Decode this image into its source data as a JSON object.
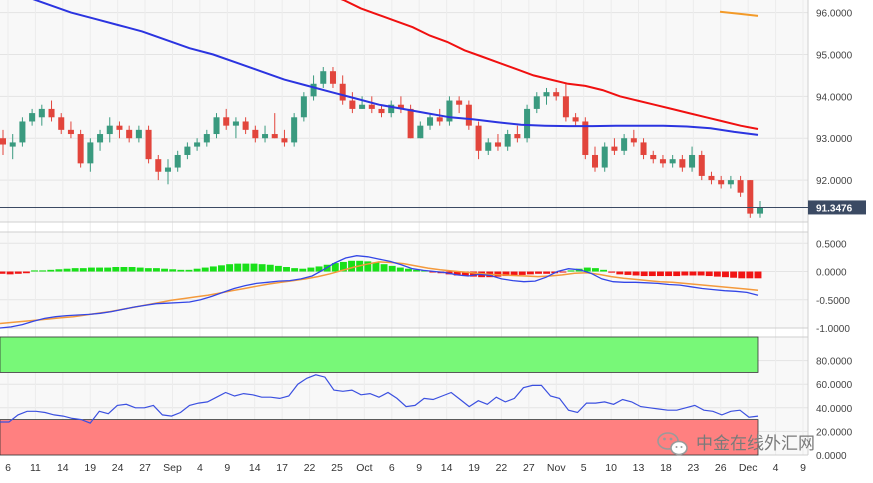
{
  "chart_data": [
    {
      "type": "candlestick",
      "panel": "price",
      "ylim": [
        91.0,
        96.3
      ],
      "y_ticks": [
        "96.0000",
        "95.0000",
        "94.0000",
        "93.0000",
        "92.0000"
      ],
      "current_price_label": "91.3476",
      "candles": [
        {
          "o": 93.0,
          "h": 93.2,
          "l": 92.6,
          "c": 92.85
        },
        {
          "o": 92.8,
          "h": 93.1,
          "l": 92.5,
          "c": 92.9
        },
        {
          "o": 92.9,
          "h": 93.5,
          "l": 92.8,
          "c": 93.4
        },
        {
          "o": 93.4,
          "h": 93.7,
          "l": 93.3,
          "c": 93.6
        },
        {
          "o": 93.5,
          "h": 93.8,
          "l": 93.3,
          "c": 93.7
        },
        {
          "o": 93.7,
          "h": 93.9,
          "l": 93.4,
          "c": 93.5
        },
        {
          "o": 93.5,
          "h": 93.6,
          "l": 93.1,
          "c": 93.2
        },
        {
          "o": 93.2,
          "h": 93.4,
          "l": 93.0,
          "c": 93.1
        },
        {
          "o": 93.1,
          "h": 93.2,
          "l": 92.3,
          "c": 92.4
        },
        {
          "o": 92.4,
          "h": 93.0,
          "l": 92.2,
          "c": 92.9
        },
        {
          "o": 92.9,
          "h": 93.2,
          "l": 92.7,
          "c": 93.1
        },
        {
          "o": 93.1,
          "h": 93.5,
          "l": 92.9,
          "c": 93.3
        },
        {
          "o": 93.3,
          "h": 93.4,
          "l": 93.0,
          "c": 93.2
        },
        {
          "o": 93.2,
          "h": 93.3,
          "l": 92.9,
          "c": 93.0
        },
        {
          "o": 93.0,
          "h": 93.3,
          "l": 92.9,
          "c": 93.2
        },
        {
          "o": 93.2,
          "h": 93.3,
          "l": 92.4,
          "c": 92.5
        },
        {
          "o": 92.5,
          "h": 92.6,
          "l": 92.0,
          "c": 92.2
        },
        {
          "o": 92.2,
          "h": 92.5,
          "l": 91.9,
          "c": 92.3
        },
        {
          "o": 92.3,
          "h": 92.7,
          "l": 92.2,
          "c": 92.6
        },
        {
          "o": 92.6,
          "h": 92.9,
          "l": 92.5,
          "c": 92.8
        },
        {
          "o": 92.8,
          "h": 93.0,
          "l": 92.7,
          "c": 92.9
        },
        {
          "o": 92.9,
          "h": 93.2,
          "l": 92.8,
          "c": 93.1
        },
        {
          "o": 93.1,
          "h": 93.6,
          "l": 93.0,
          "c": 93.5
        },
        {
          "o": 93.5,
          "h": 93.7,
          "l": 93.2,
          "c": 93.3
        },
        {
          "o": 93.3,
          "h": 93.5,
          "l": 93.0,
          "c": 93.4
        },
        {
          "o": 93.4,
          "h": 93.5,
          "l": 93.1,
          "c": 93.2
        },
        {
          "o": 93.2,
          "h": 93.3,
          "l": 92.9,
          "c": 93.0
        },
        {
          "o": 93.0,
          "h": 93.3,
          "l": 92.9,
          "c": 93.1
        },
        {
          "o": 93.1,
          "h": 93.6,
          "l": 93.0,
          "c": 93.0
        },
        {
          "o": 93.0,
          "h": 93.2,
          "l": 92.8,
          "c": 92.9
        },
        {
          "o": 92.9,
          "h": 93.6,
          "l": 92.8,
          "c": 93.5
        },
        {
          "o": 93.5,
          "h": 94.1,
          "l": 93.4,
          "c": 94.0
        },
        {
          "o": 94.0,
          "h": 94.5,
          "l": 93.9,
          "c": 94.3
        },
        {
          "o": 94.3,
          "h": 94.7,
          "l": 94.2,
          "c": 94.6
        },
        {
          "o": 94.6,
          "h": 94.7,
          "l": 94.2,
          "c": 94.3
        },
        {
          "o": 94.3,
          "h": 94.5,
          "l": 93.8,
          "c": 93.9
        },
        {
          "o": 93.9,
          "h": 94.1,
          "l": 93.6,
          "c": 93.7
        },
        {
          "o": 93.7,
          "h": 94.0,
          "l": 93.7,
          "c": 93.8
        },
        {
          "o": 93.8,
          "h": 94.0,
          "l": 93.6,
          "c": 93.7
        },
        {
          "o": 93.7,
          "h": 93.8,
          "l": 93.5,
          "c": 93.6
        },
        {
          "o": 93.6,
          "h": 93.9,
          "l": 93.5,
          "c": 93.8
        },
        {
          "o": 93.8,
          "h": 94.0,
          "l": 93.6,
          "c": 93.7
        },
        {
          "o": 93.7,
          "h": 93.8,
          "l": 93.0,
          "c": 93.0
        },
        {
          "o": 93.0,
          "h": 93.4,
          "l": 93.0,
          "c": 93.3
        },
        {
          "o": 93.3,
          "h": 93.6,
          "l": 93.2,
          "c": 93.5
        },
        {
          "o": 93.5,
          "h": 93.7,
          "l": 93.3,
          "c": 93.4
        },
        {
          "o": 93.4,
          "h": 94.0,
          "l": 93.3,
          "c": 93.9
        },
        {
          "o": 93.9,
          "h": 94.0,
          "l": 93.6,
          "c": 93.8
        },
        {
          "o": 93.8,
          "h": 93.9,
          "l": 93.2,
          "c": 93.3
        },
        {
          "o": 93.3,
          "h": 93.4,
          "l": 92.5,
          "c": 92.7
        },
        {
          "o": 92.7,
          "h": 93.0,
          "l": 92.6,
          "c": 92.9
        },
        {
          "o": 92.9,
          "h": 93.1,
          "l": 92.7,
          "c": 92.8
        },
        {
          "o": 92.8,
          "h": 93.2,
          "l": 92.7,
          "c": 93.1
        },
        {
          "o": 93.1,
          "h": 93.3,
          "l": 92.9,
          "c": 93.0
        },
        {
          "o": 93.0,
          "h": 93.8,
          "l": 92.9,
          "c": 93.7
        },
        {
          "o": 93.7,
          "h": 94.1,
          "l": 93.6,
          "c": 94.0
        },
        {
          "o": 94.0,
          "h": 94.2,
          "l": 93.8,
          "c": 94.1
        },
        {
          "o": 94.1,
          "h": 94.2,
          "l": 93.9,
          "c": 94.0
        },
        {
          "o": 94.0,
          "h": 94.3,
          "l": 93.4,
          "c": 93.5
        },
        {
          "o": 93.5,
          "h": 93.6,
          "l": 93.3,
          "c": 93.4
        },
        {
          "o": 93.4,
          "h": 93.5,
          "l": 92.5,
          "c": 92.6
        },
        {
          "o": 92.6,
          "h": 92.8,
          "l": 92.2,
          "c": 92.3
        },
        {
          "o": 92.3,
          "h": 92.9,
          "l": 92.2,
          "c": 92.8
        },
        {
          "o": 92.8,
          "h": 93.0,
          "l": 92.6,
          "c": 92.7
        },
        {
          "o": 92.7,
          "h": 93.1,
          "l": 92.6,
          "c": 93.0
        },
        {
          "o": 93.0,
          "h": 93.2,
          "l": 92.8,
          "c": 92.9
        },
        {
          "o": 92.9,
          "h": 93.0,
          "l": 92.5,
          "c": 92.6
        },
        {
          "o": 92.6,
          "h": 92.7,
          "l": 92.4,
          "c": 92.5
        },
        {
          "o": 92.5,
          "h": 92.6,
          "l": 92.3,
          "c": 92.4
        },
        {
          "o": 92.4,
          "h": 92.6,
          "l": 92.3,
          "c": 92.5
        },
        {
          "o": 92.5,
          "h": 92.6,
          "l": 92.2,
          "c": 92.3
        },
        {
          "o": 92.3,
          "h": 92.8,
          "l": 92.2,
          "c": 92.6
        },
        {
          "o": 92.6,
          "h": 92.7,
          "l": 92.0,
          "c": 92.1
        },
        {
          "o": 92.1,
          "h": 92.2,
          "l": 91.9,
          "c": 92.0
        },
        {
          "o": 92.0,
          "h": 92.1,
          "l": 91.8,
          "c": 91.9
        },
        {
          "o": 91.9,
          "h": 92.1,
          "l": 91.8,
          "c": 92.0
        },
        {
          "o": 92.0,
          "h": 92.1,
          "l": 91.6,
          "c": 91.7
        },
        {
          "o": 92.0,
          "h": 92.0,
          "l": 91.1,
          "c": 91.2
        },
        {
          "o": 91.2,
          "h": 91.5,
          "l": 91.1,
          "c": 91.35
        }
      ],
      "moving_averages": [
        {
          "color": "#2b34e0",
          "values": [
            96.7,
            96.4,
            96.2,
            96.0,
            95.85,
            95.7,
            95.55,
            95.35,
            95.15,
            95.0,
            94.8,
            94.6,
            94.4,
            94.25,
            94.1,
            93.95,
            93.8,
            93.7,
            93.6,
            93.5,
            93.45,
            93.38,
            93.32,
            93.3,
            93.29,
            93.29,
            93.3,
            93.3,
            93.3,
            93.28,
            93.24,
            93.15,
            93.08
          ]
        },
        {
          "color": "#f01010",
          "values": [
            97.2,
            97.05,
            96.9,
            96.75,
            96.6,
            96.45,
            96.3,
            96.1,
            95.95,
            95.8,
            95.65,
            95.45,
            95.3,
            95.1,
            94.95,
            94.8,
            94.65,
            94.5,
            94.4,
            94.3,
            94.25,
            94.15,
            94.0,
            93.9,
            93.8,
            93.7,
            93.6,
            93.5,
            93.4,
            93.3,
            93.22
          ]
        },
        {
          "color": "#f39a28",
          "values": [
            96.02,
            95.97,
            95.92
          ]
        }
      ]
    },
    {
      "type": "macd",
      "panel": "macd",
      "ylim": [
        -1.0,
        0.7
      ],
      "y_ticks": [
        "0.5000",
        "0.0000",
        "-0.5000",
        "-1.0000"
      ],
      "histogram": [
        -0.04,
        -0.05,
        -0.04,
        -0.03,
        0.02,
        0.02,
        0.03,
        0.04,
        0.05,
        0.06,
        0.06,
        0.07,
        0.07,
        0.07,
        0.08,
        0.08,
        0.08,
        0.07,
        0.06,
        0.06,
        0.05,
        0.04,
        0.03,
        0.03,
        0.05,
        0.07,
        0.09,
        0.11,
        0.13,
        0.14,
        0.14,
        0.14,
        0.13,
        0.12,
        0.1,
        0.08,
        0.06,
        0.05,
        0.07,
        0.09,
        0.12,
        0.15,
        0.17,
        0.19,
        0.19,
        0.18,
        0.16,
        0.13,
        0.1,
        0.07,
        0.05,
        0.03,
        0.02,
        -0.01,
        -0.03,
        -0.05,
        -0.07,
        -0.08,
        -0.09,
        -0.1,
        -0.1,
        -0.09,
        -0.08,
        -0.07,
        -0.06,
        -0.05,
        -0.04,
        -0.04,
        -0.03,
        -0.01,
        0.02,
        0.05,
        0.07,
        0.06,
        0.03,
        -0.02,
        -0.05,
        -0.06,
        -0.07,
        -0.08,
        -0.08,
        -0.08,
        -0.08,
        -0.08,
        -0.07,
        -0.07,
        -0.07,
        -0.08,
        -0.09,
        -0.1,
        -0.11,
        -0.12,
        -0.12,
        -0.12
      ],
      "macd_line": [
        -1.0,
        -0.98,
        -0.94,
        -0.88,
        -0.83,
        -0.8,
        -0.78,
        -0.77,
        -0.76,
        -0.74,
        -0.71,
        -0.67,
        -0.63,
        -0.6,
        -0.57,
        -0.56,
        -0.55,
        -0.54,
        -0.5,
        -0.44,
        -0.37,
        -0.3,
        -0.25,
        -0.21,
        -0.19,
        -0.17,
        -0.16,
        -0.13,
        -0.08,
        0.03,
        0.15,
        0.24,
        0.28,
        0.26,
        0.22,
        0.18,
        0.12,
        0.05,
        0.02,
        0.0,
        -0.02,
        -0.06,
        -0.08,
        -0.05,
        -0.07,
        -0.13,
        -0.16,
        -0.18,
        -0.17,
        -0.1,
        0.0,
        0.05,
        0.03,
        -0.03,
        -0.13,
        -0.18,
        -0.19,
        -0.19,
        -0.2,
        -0.21,
        -0.23,
        -0.24,
        -0.27,
        -0.3,
        -0.32,
        -0.34,
        -0.35,
        -0.37,
        -0.42
      ],
      "signal_line": [
        -0.92,
        -0.9,
        -0.88,
        -0.86,
        -0.84,
        -0.82,
        -0.8,
        -0.77,
        -0.74,
        -0.71,
        -0.67,
        -0.63,
        -0.59,
        -0.55,
        -0.51,
        -0.48,
        -0.45,
        -0.42,
        -0.38,
        -0.34,
        -0.3,
        -0.26,
        -0.22,
        -0.19,
        -0.16,
        -0.13,
        -0.09,
        -0.04,
        0.02,
        0.08,
        0.13,
        0.17,
        0.16,
        0.14,
        0.1,
        0.06,
        0.03,
        0.01,
        -0.01,
        -0.03,
        -0.05,
        -0.06,
        -0.07,
        -0.08,
        -0.09,
        -0.08,
        -0.06,
        -0.03,
        -0.02,
        -0.05,
        -0.09,
        -0.12,
        -0.14,
        -0.16,
        -0.18,
        -0.19,
        -0.21,
        -0.23,
        -0.25,
        -0.27,
        -0.29,
        -0.31,
        -0.33
      ]
    },
    {
      "type": "rsi",
      "panel": "rsi",
      "ylim": [
        0,
        100
      ],
      "y_ticks": [
        "80.0000",
        "60.0000",
        "40.0000",
        "20.0000",
        "0.0000"
      ],
      "overbought_zone": [
        70,
        100
      ],
      "oversold_zone": [
        0,
        30
      ],
      "values": [
        28,
        28,
        34,
        37,
        37,
        36,
        34,
        33,
        31,
        30,
        27,
        37,
        35,
        42,
        43,
        40,
        40,
        42,
        34,
        33,
        36,
        42,
        44,
        45,
        49,
        53,
        50,
        52,
        51,
        49,
        49,
        48,
        50,
        60,
        65,
        68,
        66,
        55,
        54,
        55,
        51,
        52,
        49,
        53,
        48,
        41,
        42,
        48,
        47,
        50,
        53,
        47,
        41,
        46,
        43,
        49,
        45,
        48,
        57,
        59,
        59,
        50,
        48,
        38,
        36,
        44,
        44,
        45,
        43,
        47,
        45,
        41,
        40,
        39,
        38,
        38,
        40,
        42,
        38,
        37,
        34,
        37,
        38,
        32,
        33
      ]
    }
  ],
  "x_axis": {
    "labels": [
      "6",
      "11",
      "14",
      "19",
      "24",
      "27",
      "Sep",
      "4",
      "9",
      "14",
      "17",
      "22",
      "25",
      "Oct",
      "6",
      "9",
      "14",
      "19",
      "22",
      "27",
      "Nov",
      "5",
      "10",
      "13",
      "18",
      "23",
      "26",
      "Dec",
      "4",
      "9"
    ]
  },
  "watermark": {
    "text": "中金在线外汇网"
  },
  "colors": {
    "bull": "#3a9a7f",
    "bear": "#e2453c",
    "hist_positive": "#19e019",
    "hist_negative": "#f11414",
    "macd_line": "#3346e6",
    "signal_line": "#f49a3c",
    "rsi_line": "#3b50e0",
    "overbought_fill": "#78f878",
    "oversold_fill": "#ff8080",
    "current_price_bg": "#3b4a63"
  }
}
